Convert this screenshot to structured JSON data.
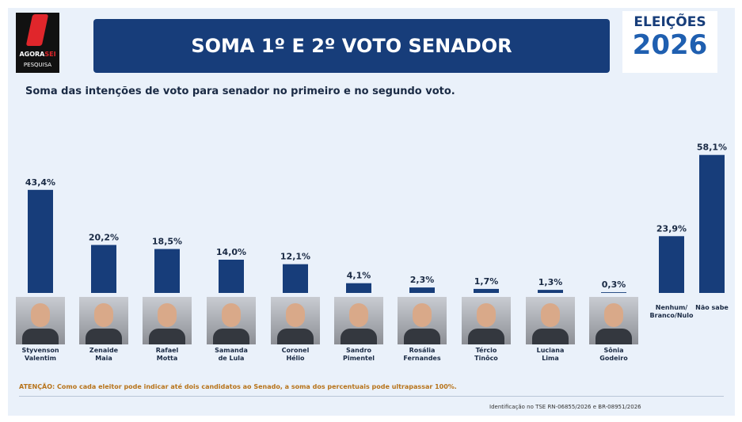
{
  "header": {
    "logo_top_a": "AGORA",
    "logo_top_b": "SEI",
    "logo_bottom": "PESQUISA",
    "title": "SOMA 1º E 2º VOTO SENADOR",
    "badge_top": "ELEIÇÕES",
    "badge_year": "2026"
  },
  "chart_data": {
    "type": "bar",
    "subtitle": "Soma das intenções de voto para senador no primeiro e no segundo voto.",
    "categories": [
      "Styvenson\nValentim",
      "Zenaide\nMaia",
      "Rafael\nMotta",
      "Samanda\nde Lula",
      "Coronel\nHélio",
      "Sandro\nPimentel",
      "Rosália\nFernandes",
      "Tércio\nTinôco",
      "Luciana\nLima",
      "Sônia\nGodeiro",
      "Nenhum/\nBranco/Nulo",
      "Não sabe"
    ],
    "values": [
      43.4,
      20.2,
      18.5,
      14.0,
      12.1,
      4.1,
      2.3,
      1.7,
      1.3,
      0.3,
      23.9,
      58.1
    ],
    "value_labels": [
      "43,4%",
      "20,2%",
      "18,5%",
      "14,0%",
      "12,1%",
      "4,1%",
      "2,3%",
      "1,7%",
      "1,3%",
      "0,3%",
      "23,9%",
      "58,1%"
    ],
    "color": "#173d7a"
  },
  "footer": {
    "note": "ATENÇÃO: Como cada eleitor pode indicar até dois candidatos ao Senado, a soma dos percentuais pode ultrapassar 100%.",
    "id": "Identificação no TSE RN-06855/2026 e BR-08951/2026"
  }
}
